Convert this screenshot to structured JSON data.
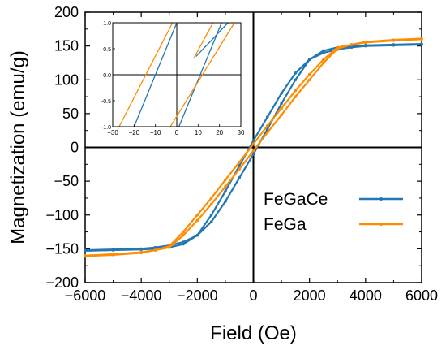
{
  "chart_data": {
    "type": "line",
    "xlabel": "Field (Oe)",
    "ylabel": "Magnetization (emu/g)",
    "xlim": [
      -6000,
      6000
    ],
    "ylim": [
      -200,
      200
    ],
    "xticks": [
      "−6000",
      "−4000",
      "−2000",
      "0",
      "2000",
      "4000",
      "6000"
    ],
    "yticks": [
      "200",
      "150",
      "100",
      "50",
      "0",
      "−50",
      "−100",
      "−150",
      "−200"
    ],
    "legend_position": "right",
    "series": [
      {
        "name": "FeGaCe",
        "color": "#1f77b4",
        "x": [
          -6000,
          -5000,
          -4000,
          -3500,
          -3000,
          -2500,
          -2000,
          -1500,
          -1000,
          -500,
          0,
          500,
          1000,
          1500,
          2000,
          2500,
          3000,
          3500,
          4000,
          5000,
          6000
        ],
        "y": [
          -152,
          -151,
          -150,
          -148,
          -145,
          -140,
          -130,
          -110,
          -80,
          -45,
          -10,
          27,
          65,
          100,
          130,
          143,
          148,
          150,
          151,
          152,
          153
        ]
      },
      {
        "name": "FeGa",
        "color": "#ff8c00",
        "x": [
          -6000,
          -5000,
          -4000,
          -3500,
          -3000,
          -2500,
          -2000,
          -1500,
          -1000,
          -500,
          0,
          500,
          1000,
          1500,
          2000,
          2500,
          3000,
          3500,
          4000,
          5000,
          6000
        ],
        "y": [
          -160,
          -158,
          -155,
          -152,
          -148,
          -130,
          -108,
          -84,
          -58,
          -32,
          -5,
          22,
          48,
          75,
          100,
          125,
          146,
          152,
          156,
          159,
          161
        ]
      }
    ],
    "inset": {
      "xlim": [
        -30,
        30
      ],
      "ylim": [
        -1.0,
        1.0
      ],
      "xticks": [
        "−30",
        "−20",
        "−10",
        "0",
        "10",
        "20",
        "30"
      ],
      "yticks": [
        "1.0",
        "0.5",
        "0.0",
        "-0.5",
        "-1.0"
      ],
      "series": [
        {
          "name": "FeGaCe",
          "color": "#1f77b4",
          "segments": [
            {
              "x": [
                -20,
                0
              ],
              "y": [
                -1.0,
                1.0
              ]
            },
            {
              "x": [
                1,
                21
              ],
              "y": [
                -1.0,
                1.0
              ]
            },
            {
              "x": [
                9,
                24
              ],
              "y": [
                0.35,
                1.0
              ]
            }
          ]
        },
        {
          "name": "FeGa",
          "color": "#ff8c00",
          "segments": [
            {
              "x": [
                -27,
                -2
              ],
              "y": [
                -1.0,
                1.0
              ]
            },
            {
              "x": [
                -3,
                27
              ],
              "y": [
                -1.0,
                1.0
              ]
            },
            {
              "x": [
                8,
                17
              ],
              "y": [
                0.32,
                1.0
              ]
            }
          ]
        }
      ]
    }
  }
}
